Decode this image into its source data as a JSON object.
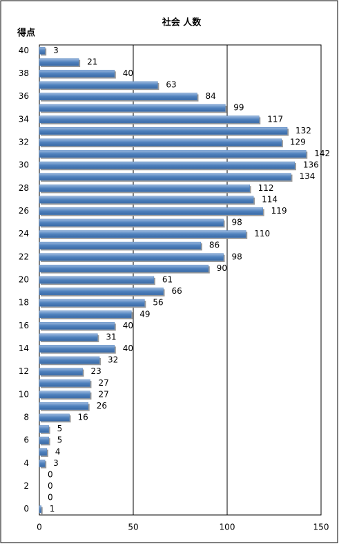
{
  "chart_data": {
    "type": "bar",
    "orientation": "horizontal",
    "title": "社会 人数",
    "y_label": "得点",
    "categories": [
      "40",
      null,
      "38",
      null,
      "36",
      null,
      "34",
      null,
      "32",
      null,
      "30",
      null,
      "28",
      null,
      "26",
      null,
      "24",
      null,
      "22",
      null,
      "20",
      null,
      "18",
      null,
      "16",
      null,
      "14",
      null,
      "12",
      null,
      "10",
      null,
      "8",
      null,
      "6",
      null,
      "4",
      null,
      "2",
      null,
      "0"
    ],
    "values": [
      3,
      21,
      40,
      63,
      84,
      99,
      117,
      132,
      129,
      142,
      136,
      134,
      112,
      114,
      119,
      98,
      110,
      86,
      98,
      90,
      61,
      66,
      56,
      49,
      40,
      31,
      40,
      32,
      23,
      27,
      27,
      26,
      16,
      5,
      5,
      4,
      3,
      0,
      0,
      0,
      1
    ],
    "color": "#4f81bd",
    "xlim": [
      0,
      150
    ],
    "xticks": [
      0,
      50,
      100,
      150
    ],
    "grid": true
  }
}
